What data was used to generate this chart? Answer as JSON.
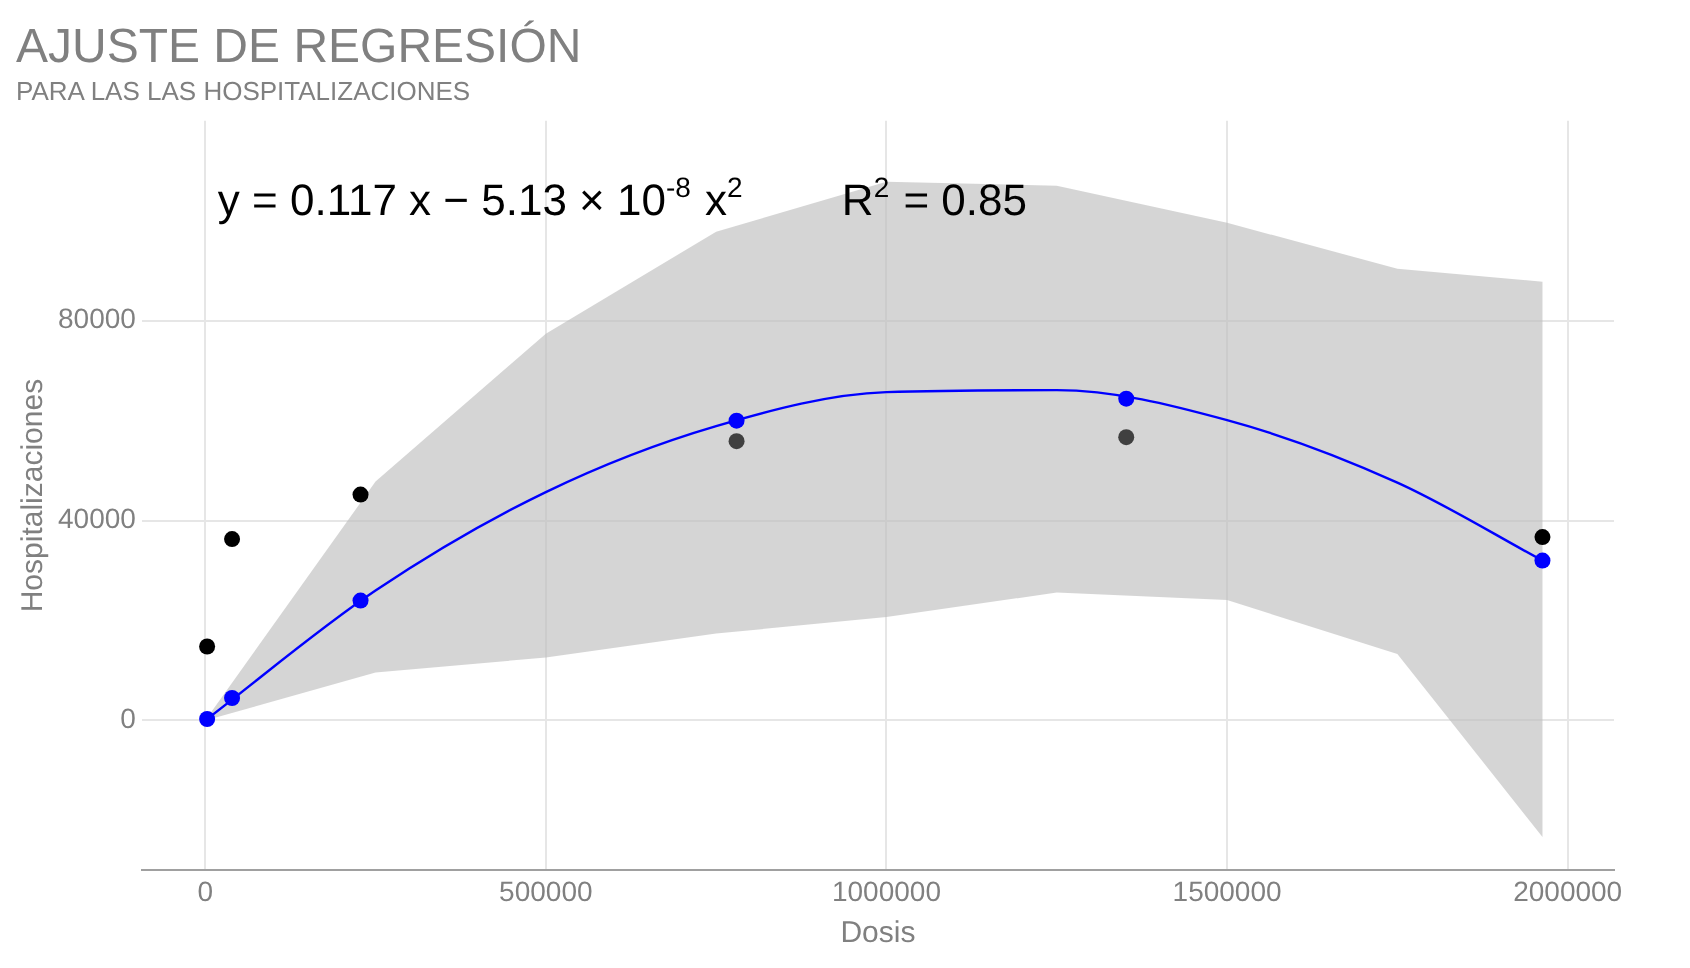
{
  "chart_data": {
    "type": "scatter",
    "title": "AJUSTE DE REGRESIÓN",
    "subtitle": "PARA LAS LAS HOSPITALIZACIONES",
    "xlabel": "Dosis",
    "ylabel": "Hospitalizaciones",
    "annotations": [
      "y = 0.117 x − 5.13 × 10$^{-8}$ x$^{2}$",
      "R$^{2}$ = 0.85"
    ],
    "series": [
      {
        "type": "line",
        "color": "#0000ff",
        "marker": "none",
        "x": [
          0,
          250000,
          500000,
          750000,
          1000000,
          1250000,
          1500000,
          1750000,
          1963000
        ],
        "values": [
          0,
          26000,
          45700,
          58900,
          65700,
          66100,
          60100,
          47600,
          32000
        ],
        "lower": [
          0,
          9600,
          12600,
          17400,
          20700,
          25600,
          24100,
          13300,
          -23300
        ],
        "upper": [
          0,
          47800,
          77400,
          97800,
          107800,
          107000,
          99600,
          90400,
          87800
        ]
      },
      {
        "color": "#000000",
        "colors": [
          "#000000",
          "#000000",
          "#000000",
          "#404040",
          "#404040",
          "#000000"
        ],
        "x": [
          2800,
          39400,
          228000,
          780000,
          1352000,
          1963000
        ],
        "values": [
          14800,
          36300,
          45200,
          55900,
          56700,
          36700
        ]
      },
      {
        "color": "#0000ff",
        "x": [
          2800,
          39400,
          228000,
          780000,
          1352000,
          1963000
        ],
        "values": [
          300,
          4500,
          24000,
          60000,
          64400,
          32000
        ]
      }
    ],
    "xlim": [
      -93000,
      2068000
    ],
    "xticks": [
      0,
      500000,
      1000000,
      1500000,
      2000000
    ],
    "ylim": [
      -30000,
      120000
    ],
    "yticks": [
      0,
      40000,
      80000
    ],
    "grid": true,
    "legend": false,
    "marker": "circle"
  }
}
